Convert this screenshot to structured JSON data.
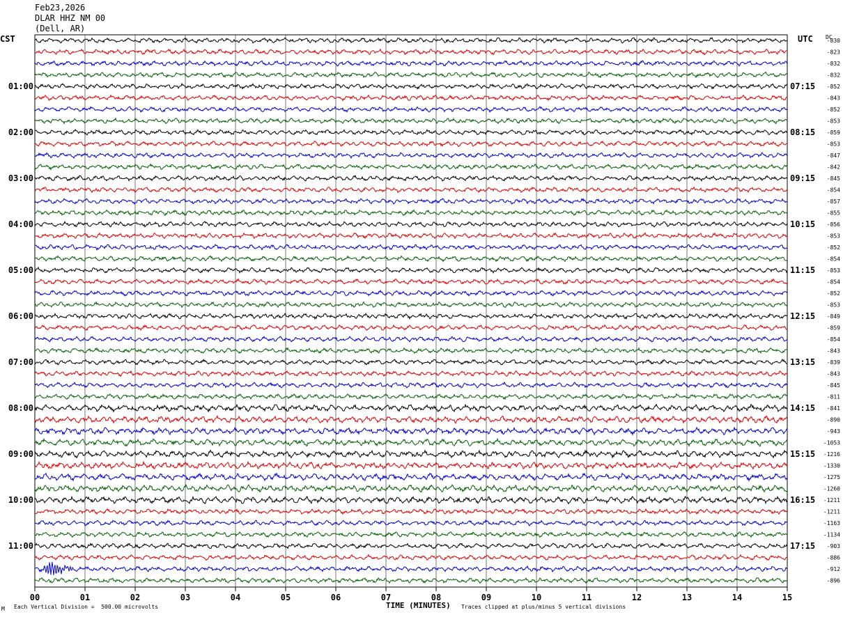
{
  "header": {
    "date": "Feb23,2026",
    "station": "DLAR HHZ NM 00",
    "location": "(Dell, AR)"
  },
  "left_tz": "CST",
  "right_tz": "UTC",
  "dc_label": "DC",
  "footer": {
    "left_note": "Each Vertical Division =  500.00 microvolts",
    "mark": "M",
    "xlabel": "TIME (MINUTES)",
    "right_note": "Traces clipped at plus/minus 5 vertical divisions"
  },
  "chart_data": {
    "type": "line",
    "title": "",
    "xlabel": "TIME (MINUTES)",
    "xlim": [
      0,
      15
    ],
    "x_ticks": [
      "00",
      "01",
      "02",
      "03",
      "04",
      "05",
      "06",
      "07",
      "08",
      "09",
      "10",
      "11",
      "12",
      "13",
      "14",
      "15"
    ],
    "trace_count": 48,
    "trace_colors": [
      "#000000",
      "#e00000",
      "#0000d0",
      "#006000"
    ],
    "left_hour_labels": [
      "01:00",
      "02:00",
      "03:00",
      "04:00",
      "05:00",
      "06:00",
      "07:00",
      "08:00",
      "09:00",
      "10:00",
      "11:00"
    ],
    "right_hour_labels": [
      "07:15",
      "08:15",
      "09:15",
      "10:15",
      "11:15",
      "12:15",
      "13:15",
      "14:15",
      "15:15",
      "16:15",
      "17:15"
    ],
    "dc_offsets": [
      -830,
      -823,
      -832,
      -832,
      -852,
      -843,
      -852,
      -853,
      -859,
      -853,
      -847,
      -842,
      -845,
      -854,
      -857,
      -855,
      -856,
      -853,
      -852,
      -854,
      -853,
      -854,
      -852,
      -853,
      -849,
      -859,
      -854,
      -843,
      -839,
      -843,
      -845,
      -811,
      -841,
      -890,
      -943,
      -1053,
      -1216,
      -1330,
      -1275,
      -1260,
      -1211,
      -1211,
      -1163,
      -1134,
      -903,
      -886,
      -912,
      -896
    ],
    "vertical_division_microvolts": 500.0,
    "clip_divisions": 5,
    "events": [
      {
        "trace": 46,
        "minute": 0.3
      }
    ]
  }
}
